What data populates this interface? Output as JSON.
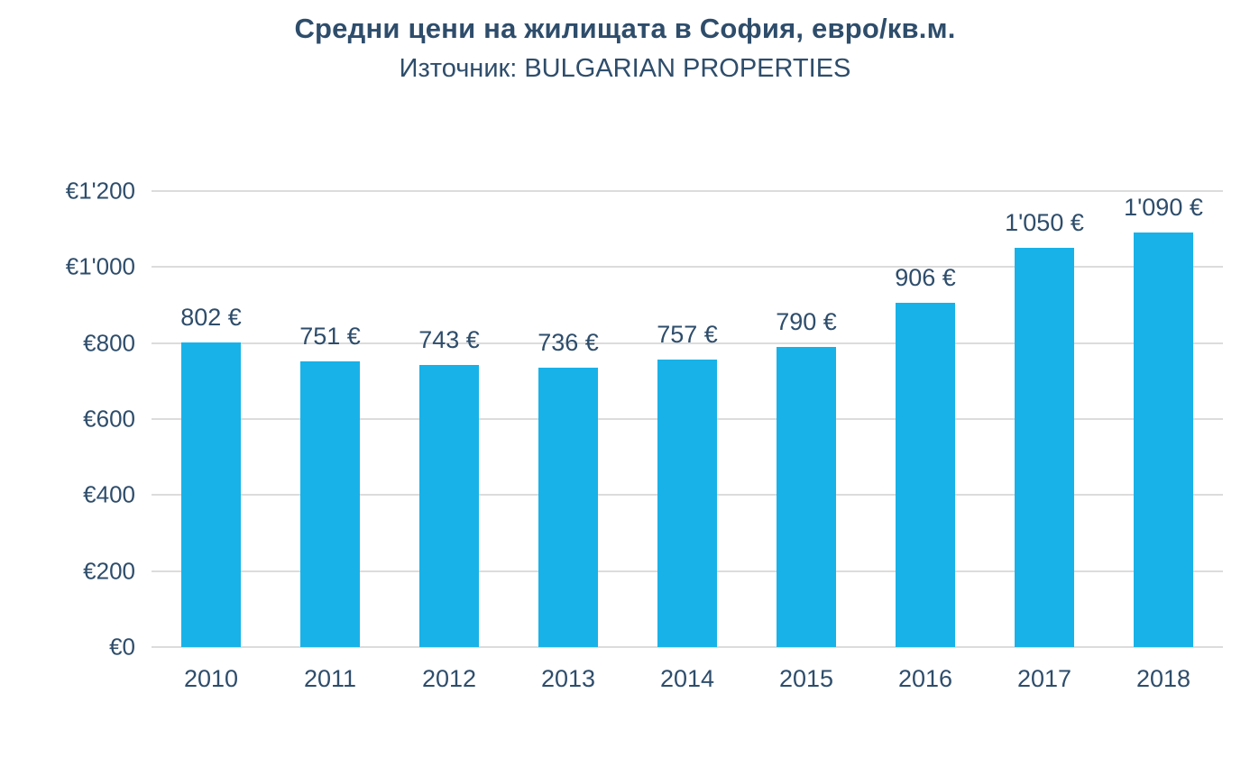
{
  "title": "Средни цени на жилищата в София, евро/кв.м.",
  "subtitle": "Източник: BULGARIAN PROPERTIES",
  "colors": {
    "bar": "#18B2E8",
    "text": "#2E4D6B",
    "gridline": "#DCDCDC"
  },
  "chart_data": {
    "type": "bar",
    "title": "Средни цени на жилищата в София, евро/кв.м.",
    "subtitle": "Източник: BULGARIAN PROPERTIES",
    "categories": [
      "2010",
      "2011",
      "2012",
      "2013",
      "2014",
      "2015",
      "2016",
      "2017",
      "2018"
    ],
    "values": [
      802,
      751,
      743,
      736,
      757,
      790,
      906,
      1050,
      1090
    ],
    "data_labels": [
      "802 €",
      "751 €",
      "743 €",
      "736 €",
      "757 €",
      "790 €",
      "906 €",
      "1'050 €",
      "1'090 €"
    ],
    "xlabel": "",
    "ylabel": "",
    "ylim": [
      0,
      1200
    ],
    "ytick_labels": [
      "€1'200",
      "€1'000",
      "€800",
      "€600",
      "€400",
      "€200",
      "€0"
    ],
    "ytick_values": [
      1200,
      1000,
      800,
      600,
      400,
      200,
      0
    ],
    "grid": true,
    "legend_position": "none"
  }
}
